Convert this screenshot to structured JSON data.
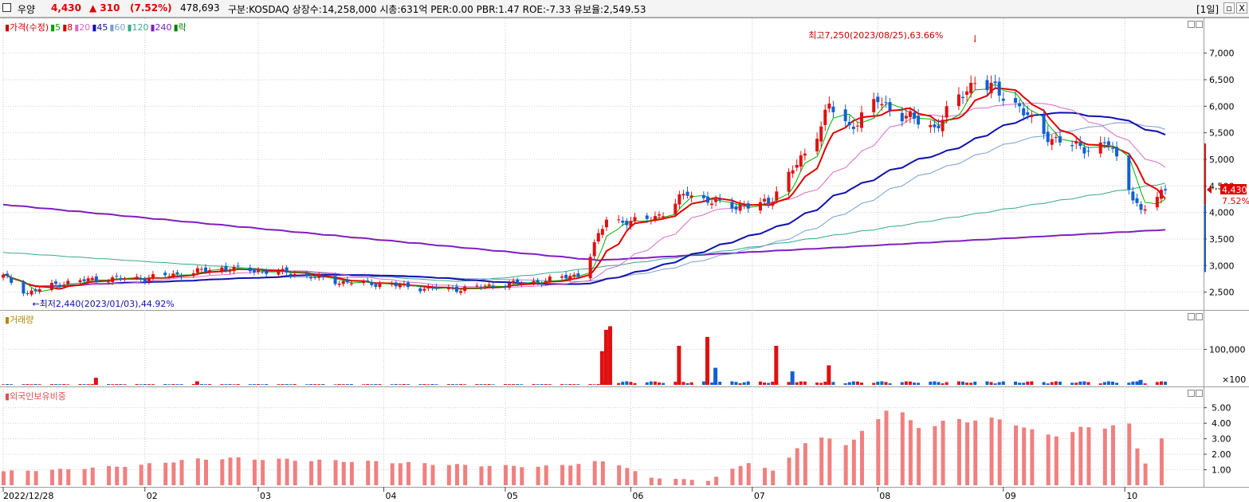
{
  "header": {
    "stock_name": "우양",
    "price": "4,430",
    "change": "▲ 310",
    "change_pct": "(7.52%)",
    "volume": "478,693",
    "info": "구분:KOSDAQ 상장수:14,258,000 시총:631억 PER:0.00 PBR:1.47 ROE:-7.33 유보율:2,549.53",
    "period": "[1일]",
    "close_btn": "X"
  },
  "price_panel": {
    "legend": [
      {
        "text": "가격(수정)",
        "color": "#cc0000"
      },
      {
        "text": "5",
        "color": "#00a000"
      },
      {
        "text": "8",
        "color": "#cc0000"
      },
      {
        "text": "20",
        "color": "#d96bc8"
      },
      {
        "text": "45",
        "color": "#1010b0"
      },
      {
        "text": "60",
        "color": "#7a9ecf"
      },
      {
        "text": "120",
        "color": "#3aa68b"
      },
      {
        "text": "240",
        "color": "#7f1fbf"
      },
      {
        "text": "락",
        "color": "#008000"
      }
    ],
    "high_label": "최고7,250(2023/08/25),63.66%",
    "low_label": "←최저2,440(2023/01/03),44.92%",
    "y_ticks": [
      "7,000",
      "6,500",
      "6,000",
      "5,500",
      "5,000",
      "4,500",
      "4,000",
      "3,500",
      "3,000",
      "2,500"
    ],
    "current_price_tag": "4,430",
    "current_pct_tag": "7.52%"
  },
  "volume_panel": {
    "legend": "거래량",
    "y_ticks": [
      "100,000"
    ],
    "unit": "×100"
  },
  "foreign_panel": {
    "legend": "외국인보유비중",
    "y_ticks": [
      "5.00",
      "4.00",
      "3.00",
      "2.00",
      "1.00"
    ]
  },
  "x_axis": {
    "labels": [
      "2022/12/28",
      "02",
      "03",
      "04",
      "05",
      "06",
      "07",
      "08",
      "09",
      "10"
    ]
  },
  "colors": {
    "up": "#e01010",
    "down": "#1060d0",
    "ma5": "#00b000",
    "ma8": "#e00000",
    "ma20": "#d96bc8",
    "ma45": "#1010b0",
    "ma60": "#7a9ecf",
    "ma120": "#3aa68b",
    "ma240": "#7f1fbf",
    "foreign_bar": "#f08080"
  },
  "chart_data": {
    "type": "candlestick",
    "x_start": "2022-12-28",
    "x_end": "2023-10-11",
    "x_month_ticks": [
      "2022/12/28",
      "02",
      "03",
      "04",
      "05",
      "06",
      "07",
      "08",
      "09",
      "10"
    ],
    "price_ylim": [
      2300,
      7400
    ],
    "price_path": [
      [
        "2022-12-28",
        2800
      ],
      [
        "2023-01-03",
        2480
      ],
      [
        "2023-01-10",
        2650
      ],
      [
        "2023-01-20",
        2750
      ],
      [
        "2023-02-01",
        2760
      ],
      [
        "2023-02-10",
        2850
      ],
      [
        "2023-02-20",
        2950
      ],
      [
        "2023-03-01",
        2900
      ],
      [
        "2023-03-10",
        2850
      ],
      [
        "2023-03-20",
        2700
      ],
      [
        "2023-04-01",
        2650
      ],
      [
        "2023-04-10",
        2580
      ],
      [
        "2023-04-20",
        2560
      ],
      [
        "2023-05-01",
        2650
      ],
      [
        "2023-05-10",
        2700
      ],
      [
        "2023-05-20",
        2850
      ],
      [
        "2023-05-26",
        3900
      ],
      [
        "2023-06-01",
        3800
      ],
      [
        "2023-06-10",
        4000
      ],
      [
        "2023-06-15",
        4400
      ],
      [
        "2023-06-20",
        4200
      ],
      [
        "2023-06-30",
        4100
      ],
      [
        "2023-07-05",
        4200
      ],
      [
        "2023-07-10",
        4700
      ],
      [
        "2023-07-15",
        5200
      ],
      [
        "2023-07-20",
        6000
      ],
      [
        "2023-07-25",
        5600
      ],
      [
        "2023-08-01",
        6100
      ],
      [
        "2023-08-08",
        5800
      ],
      [
        "2023-08-15",
        5600
      ],
      [
        "2023-08-25",
        6500
      ],
      [
        "2023-08-30",
        6300
      ],
      [
        "2023-09-05",
        6000
      ],
      [
        "2023-09-10",
        5500
      ],
      [
        "2023-09-20",
        5200
      ],
      [
        "2023-09-27",
        5300
      ],
      [
        "2023-10-05",
        4000
      ],
      [
        "2023-10-11",
        4430
      ]
    ],
    "high": {
      "date": "2023-08-25",
      "value": 7250,
      "pct": "63.66%"
    },
    "low": {
      "date": "2023-01-03",
      "value": 2440,
      "pct": "44.92%"
    },
    "moving_averages": [
      "5",
      "8",
      "20",
      "45",
      "60",
      "120",
      "240"
    ],
    "volume_spikes": [
      {
        "date": "2023-01-20",
        "value": 20000
      },
      {
        "date": "2023-02-14",
        "value": 10000
      },
      {
        "date": "2023-05-25",
        "value": 95000
      },
      {
        "date": "2023-05-26",
        "value": 155000
      },
      {
        "date": "2023-05-27",
        "value": 165000
      },
      {
        "date": "2023-06-13",
        "value": 110000
      },
      {
        "date": "2023-06-20",
        "value": 135000
      },
      {
        "date": "2023-06-22",
        "value": 48000
      },
      {
        "date": "2023-07-07",
        "value": 110000
      },
      {
        "date": "2023-07-11",
        "value": 38000
      },
      {
        "date": "2023-07-20",
        "value": 55000
      },
      {
        "date": "2023-10-05",
        "value": 14000
      }
    ],
    "foreign_ratio_ylim": [
      0,
      5.6
    ],
    "foreign_ratio_path": [
      [
        "2022-12-28",
        0.9
      ],
      [
        "2023-01-10",
        1.0
      ],
      [
        "2023-01-31",
        1.3
      ],
      [
        "2023-02-10",
        1.6
      ],
      [
        "2023-02-20",
        1.75
      ],
      [
        "2023-03-01",
        1.7
      ],
      [
        "2023-03-15",
        1.6
      ],
      [
        "2023-04-01",
        1.5
      ],
      [
        "2023-04-20",
        1.3
      ],
      [
        "2023-05-10",
        1.2
      ],
      [
        "2023-05-20",
        1.4
      ],
      [
        "2023-05-27",
        1.6
      ],
      [
        "2023-06-05",
        0.5
      ],
      [
        "2023-06-20",
        0.3
      ],
      [
        "2023-06-30",
        1.5
      ],
      [
        "2023-07-07",
        0.8
      ],
      [
        "2023-07-12",
        2.5
      ],
      [
        "2023-07-20",
        3.1
      ],
      [
        "2023-07-25",
        2.6
      ],
      [
        "2023-08-01",
        4.4
      ],
      [
        "2023-08-04",
        5.3
      ],
      [
        "2023-08-10",
        3.8
      ],
      [
        "2023-08-20",
        4.1
      ],
      [
        "2023-08-25",
        4.3
      ],
      [
        "2023-09-05",
        4.0
      ],
      [
        "2023-09-10",
        3.1
      ],
      [
        "2023-09-20",
        3.6
      ],
      [
        "2023-09-30",
        4.0
      ],
      [
        "2023-10-03",
        3.7
      ],
      [
        "2023-10-05",
        1.0
      ],
      [
        "2023-10-09",
        2.9
      ],
      [
        "2023-10-11",
        3.2
      ]
    ]
  }
}
